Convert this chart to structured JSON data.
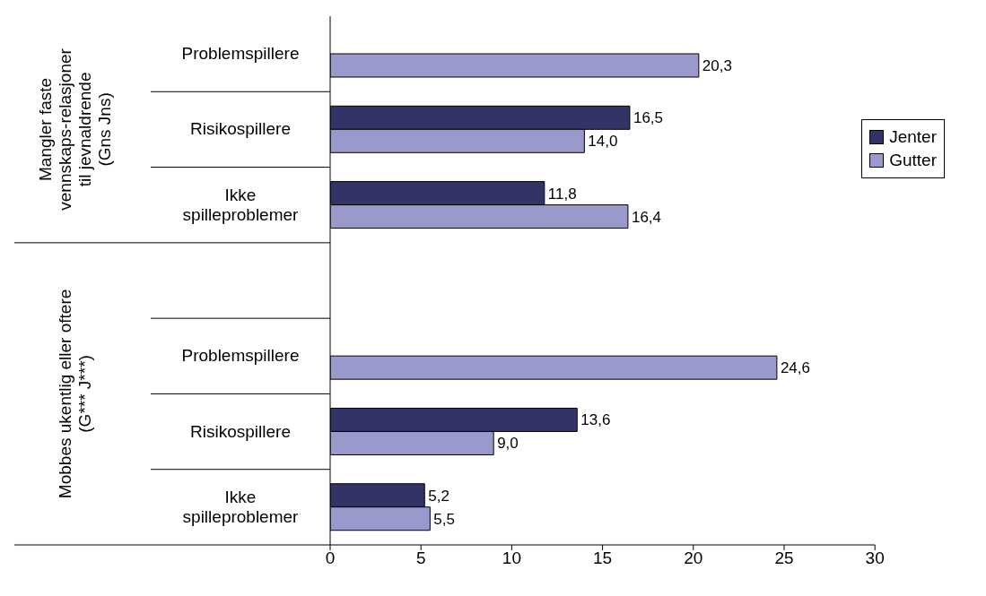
{
  "chart_data": {
    "type": "bar",
    "orientation": "horizontal",
    "categories": [
      "Problemspillere",
      "Risikospillere",
      "Ikke spilleproblemer",
      null,
      "Problemspillere",
      "Risikospillere",
      "Ikke spilleproblemer"
    ],
    "series": [
      {
        "name": "Jenter",
        "color": "#333366",
        "values": [
          null,
          16.5,
          11.8,
          null,
          null,
          13.6,
          5.2
        ],
        "value_labels": [
          null,
          "16,5",
          "11,8",
          null,
          null,
          "13,6",
          "5,2"
        ]
      },
      {
        "name": "Gutter",
        "color": "#9999cc",
        "values": [
          20.3,
          14.0,
          16.4,
          null,
          24.6,
          9.0,
          5.5
        ],
        "value_labels": [
          "20,3",
          "14,0",
          "16,4",
          null,
          "24,6",
          "9,0",
          "5,5"
        ]
      }
    ],
    "xlim": [
      0,
      30
    ],
    "xticks": [
      0,
      5,
      10,
      15,
      20,
      25,
      30
    ],
    "annotations": [
      "Mangler faste\nvennskaps-relasjoner\ntil jevnaldrende\n(Gns Jns)",
      "Mobbes ukentlig eller oftere\n(G*** J***)"
    ],
    "legend": "top right",
    "grid": false
  }
}
